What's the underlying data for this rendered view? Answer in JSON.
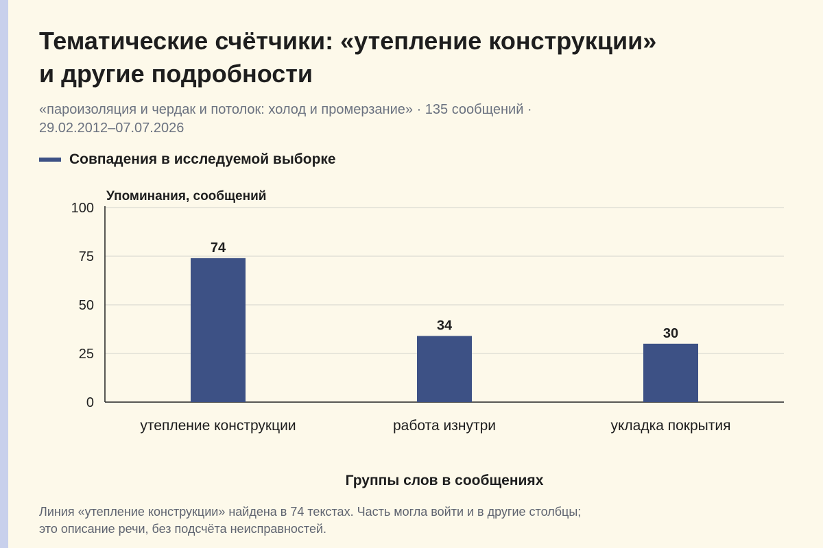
{
  "header": {
    "title_line1": "Тематические счётчики: «утепление конструкции»",
    "title_line2": "и другие подробности",
    "subtitle_line1": "«пароизоляция и чердак и потолок: холод и промерзание» · 135 сообщений ·",
    "subtitle_line2": "29.02.2012–07.07.2026"
  },
  "footer": {
    "line1": "Линия «утепление конструкции» найдена в 74 текстах. Часть могла войти и в другие столбцы;",
    "line2": "это описание речи, без подсчёта неисправностей."
  },
  "chart_data": {
    "type": "bar",
    "ylabel": "Упоминания, сообщений",
    "xlabel": "Группы слов в сообщениях",
    "categories": [
      "утепление конструкции",
      "работа изнутри",
      "укладка покрытия"
    ],
    "series": [
      {
        "name": "Совпадения в исследуемой выборке",
        "values": [
          74,
          34,
          30
        ],
        "color": "#3d5185"
      }
    ],
    "ylim": [
      0,
      100
    ],
    "yticks": [
      0,
      25,
      50,
      75,
      100
    ],
    "grid": true,
    "data_labels": true,
    "legend": "top-left"
  }
}
